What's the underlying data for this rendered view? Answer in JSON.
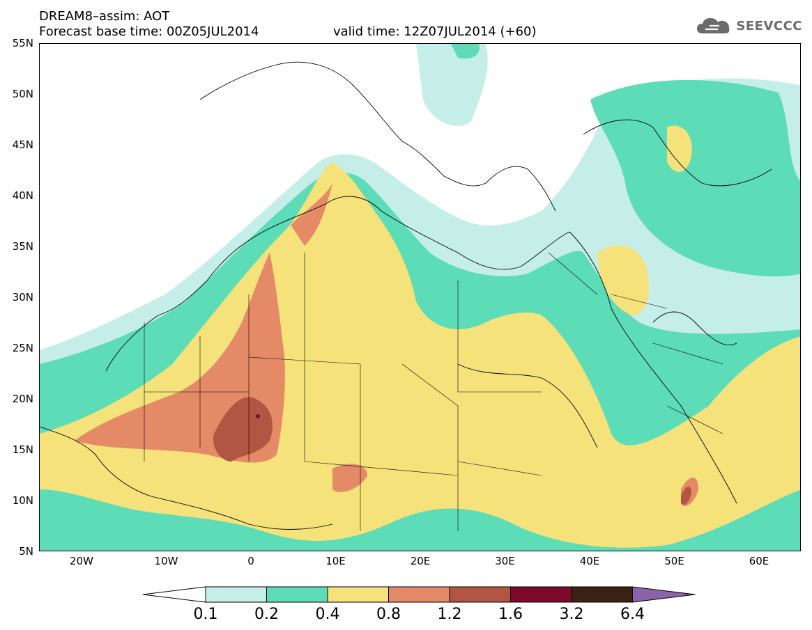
{
  "header": {
    "line1": "DREAM8–assim: AOT",
    "line2": "Forecast base time: 00Z05JUL2014",
    "valid": "valid time: 12Z07JUL2014 (+60)",
    "logo_text": "SEEVCCC",
    "logo_icon": "cloud-icon"
  },
  "axes": {
    "lat_labels": [
      "55N",
      "50N",
      "45N",
      "40N",
      "35N",
      "30N",
      "25N",
      "20N",
      "15N",
      "10N",
      "5N"
    ],
    "lon_labels": [
      "20W",
      "10W",
      "0",
      "10E",
      "20E",
      "30E",
      "40E",
      "50E",
      "60E"
    ]
  },
  "legend": {
    "thresholds": [
      "0.1",
      "0.2",
      "0.4",
      "0.8",
      "1.2",
      "1.6",
      "3.2",
      "6.4"
    ],
    "colors": [
      "#ffffff",
      "#c6eee8",
      "#5ddcb8",
      "#f5e27a",
      "#e48a66",
      "#b25542",
      "#7e0a2e",
      "#3a2314",
      "#8a63a8"
    ]
  },
  "palette": {
    "c02": "#c6eee8",
    "c04": "#5ddcb8",
    "c08": "#f5e27a",
    "c12": "#e48a66",
    "c16": "#b25542",
    "c32": "#7e0a2e"
  }
}
